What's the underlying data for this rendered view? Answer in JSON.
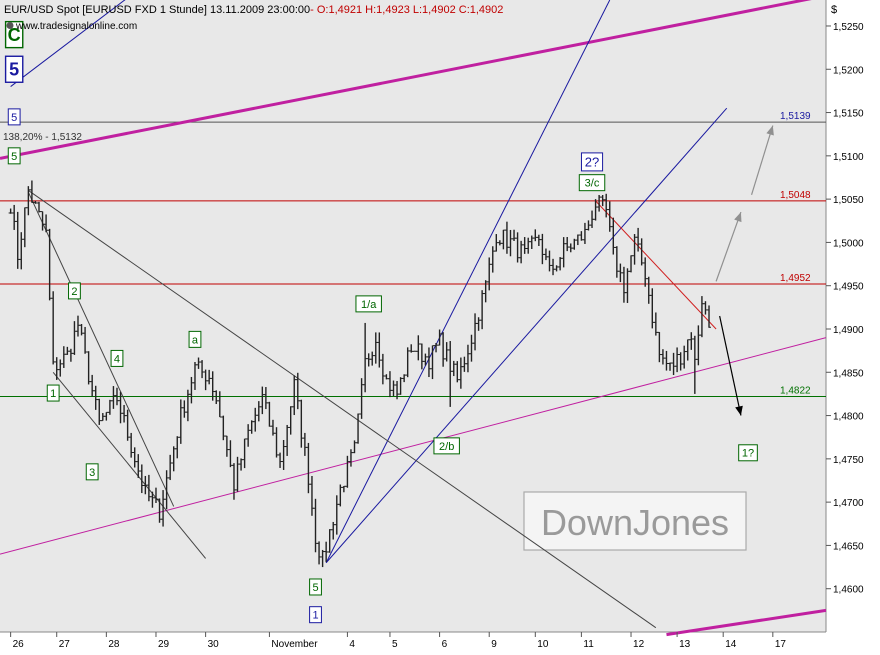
{
  "header": {
    "title": "EUR/USD Spot [EURUSD FXD  1 Stunde] 13.11.2009 23:00:00",
    "ohlc": "- O:1,4921 H:1,4923 L:1,4902 C:1,4902",
    "source": "www.tradesignalonline.com",
    "currency_symbol": "$"
  },
  "watermark": "DownJones",
  "colors": {
    "background": "#e8e8e8",
    "bars": "#222222",
    "resistance": "#c00000",
    "support": "#007000",
    "magenta": "#c020a0",
    "channel_blue": "#1a1aa0",
    "wave_green": "#006600",
    "wave_blue": "#1a1aa0",
    "arrow_gray": "#909090",
    "arrow_black": "#000000"
  },
  "chart_data": {
    "type": "ohlc",
    "instrument": "EUR/USD",
    "interval": "1 Stunde",
    "ylim": [
      1.455,
      1.528
    ],
    "y_ticks": [
      "1,5250",
      "1,5200",
      "1,5150",
      "1,5100",
      "1,5050",
      "1,5000",
      "1,4950",
      "1,4900",
      "1,4850",
      "1,4800",
      "1,4750",
      "1,4700",
      "1,4650",
      "1,4600"
    ],
    "x_labels": [
      {
        "text": "26",
        "i": 0
      },
      {
        "text": "27",
        "i": 13
      },
      {
        "text": "28",
        "i": 27
      },
      {
        "text": "29",
        "i": 41
      },
      {
        "text": "30",
        "i": 55
      },
      {
        "text": "November",
        "i": 73
      },
      {
        "text": "4",
        "i": 95
      },
      {
        "text": "5",
        "i": 107
      },
      {
        "text": "6",
        "i": 121
      },
      {
        "text": "9",
        "i": 135
      },
      {
        "text": "10",
        "i": 148
      },
      {
        "text": "11",
        "i": 161
      },
      {
        "text": "12",
        "i": 175
      },
      {
        "text": "13",
        "i": 188
      },
      {
        "text": "14",
        "i": 201
      },
      {
        "text": "17",
        "i": 215
      }
    ],
    "index_range": [
      -3,
      230
    ],
    "anchors": [
      [
        0,
        1.5045
      ],
      [
        2,
        1.4985
      ],
      [
        5,
        1.506
      ],
      [
        10,
        1.501
      ],
      [
        12,
        1.4855
      ],
      [
        16,
        1.487
      ],
      [
        19,
        1.4905
      ],
      [
        25,
        1.479
      ],
      [
        30,
        1.482
      ],
      [
        34,
        1.4765
      ],
      [
        38,
        1.471
      ],
      [
        42,
        1.469
      ],
      [
        48,
        1.48
      ],
      [
        52,
        1.4855
      ],
      [
        56,
        1.4845
      ],
      [
        58,
        1.482
      ],
      [
        63,
        1.472
      ],
      [
        67,
        1.478
      ],
      [
        71,
        1.482
      ],
      [
        76,
        1.4745
      ],
      [
        80,
        1.4835
      ],
      [
        84,
        1.473
      ],
      [
        86,
        1.466
      ],
      [
        88,
        1.4632
      ],
      [
        93,
        1.4715
      ],
      [
        97,
        1.476
      ],
      [
        100,
        1.486
      ],
      [
        103,
        1.489
      ],
      [
        106,
        1.484
      ],
      [
        109,
        1.4825
      ],
      [
        113,
        1.488
      ],
      [
        118,
        1.4865
      ],
      [
        121,
        1.4885
      ],
      [
        126,
        1.484
      ],
      [
        130,
        1.489
      ],
      [
        134,
        1.495
      ],
      [
        137,
        1.501
      ],
      [
        141,
        1.5
      ],
      [
        145,
        1.4985
      ],
      [
        149,
        1.5005
      ],
      [
        152,
        1.4965
      ],
      [
        156,
        1.499
      ],
      [
        159,
        1.5
      ],
      [
        162,
        1.501
      ],
      [
        165,
        1.5045
      ],
      [
        168,
        1.5035
      ],
      [
        170,
        1.4985
      ],
      [
        173,
        1.495
      ],
      [
        176,
        1.5
      ],
      [
        179,
        1.4965
      ],
      [
        181,
        1.4915
      ],
      [
        183,
        1.487
      ],
      [
        186,
        1.4855
      ],
      [
        189,
        1.487
      ],
      [
        192,
        1.4895
      ],
      [
        193,
        1.486
      ],
      [
        195,
        1.4935
      ],
      [
        197,
        1.4902
      ]
    ],
    "spikes": [
      {
        "i": 88,
        "low": 1.4625
      },
      {
        "i": 100,
        "high": 1.4907
      },
      {
        "i": 124,
        "low": 1.481
      },
      {
        "i": 165,
        "high": 1.505
      },
      {
        "i": 193,
        "low": 1.4825
      },
      {
        "i": 195,
        "high": 1.4938
      },
      {
        "i": 5,
        "high": 1.5065
      }
    ],
    "horizontal_levels": [
      {
        "value": 1.5139,
        "label": "1,5139",
        "color": "#1a1aa0",
        "line": "#555555"
      },
      {
        "value": 1.5048,
        "label": "1,5048",
        "color": "#c00000",
        "line": "#c00000"
      },
      {
        "value": 1.4952,
        "label": "1,4952",
        "color": "#c00000",
        "line": "#c00000"
      },
      {
        "value": 1.4822,
        "label": "1,4822",
        "color": "#007000",
        "line": "#007000"
      }
    ],
    "fib_annotation": "138,20% - 1,5132",
    "trend_lines": [
      {
        "name": "upper-magenta-trendline",
        "color": "#c020a0",
        "width": 3,
        "p1": [
          -3,
          1.5097
        ],
        "p2": [
          230,
          1.5285
        ]
      },
      {
        "name": "lower-magenta-trendline",
        "color": "#c020a0",
        "width": 3,
        "p1": [
          185,
          1.4547
        ],
        "p2": [
          230,
          1.4575
        ]
      },
      {
        "name": "magenta-support-line",
        "color": "#c020a0",
        "width": 1,
        "p1": [
          -3,
          1.464
        ],
        "p2": [
          230,
          1.489
        ]
      },
      {
        "name": "blue-upper-channel-line",
        "color": "#1a1aa0",
        "width": 1,
        "p1": [
          89,
          1.463
        ],
        "p2": [
          169,
          1.528
        ]
      },
      {
        "name": "blue-lower-channel-line",
        "color": "#1a1aa0",
        "width": 1,
        "p1": [
          89,
          1.463
        ],
        "p2": [
          202,
          1.5155
        ]
      },
      {
        "name": "blue-topleft-line",
        "color": "#1a1aa0",
        "width": 1,
        "p1": [
          0,
          1.518
        ],
        "p2": [
          37,
          1.5295
        ]
      },
      {
        "name": "gray-downtrend-line",
        "color": "#444444",
        "width": 1,
        "p1": [
          5,
          1.506
        ],
        "p2": [
          182,
          1.4555
        ]
      },
      {
        "name": "gray-wave-channel-upper",
        "color": "#444444",
        "width": 1,
        "p1": [
          5,
          1.5058
        ],
        "p2": [
          46,
          1.4695
        ]
      },
      {
        "name": "gray-wave-channel-lower",
        "color": "#444444",
        "width": 1,
        "p1": [
          12,
          1.485
        ],
        "p2": [
          55,
          1.4635
        ]
      },
      {
        "name": "red-resistance-line",
        "color": "#d02020",
        "width": 1,
        "p1": [
          165,
          1.5048
        ],
        "p2": [
          199,
          1.49
        ]
      }
    ],
    "wave_labels": [
      {
        "text": "C",
        "style": "big-green",
        "i": 1,
        "y": 1.524
      },
      {
        "text": "5",
        "style": "big-blue",
        "i": 1,
        "y": 1.52
      },
      {
        "text": "5",
        "style": "blue",
        "i": 1,
        "y": 1.5145
      },
      {
        "text": "5",
        "style": "green",
        "i": 1,
        "y": 1.51
      },
      {
        "text": "2",
        "style": "green",
        "i": 18,
        "y": 1.4944
      },
      {
        "text": "1",
        "style": "green",
        "i": 12,
        "y": 1.4826
      },
      {
        "text": "4",
        "style": "green",
        "i": 30,
        "y": 1.4866
      },
      {
        "text": "3",
        "style": "green",
        "i": 23,
        "y": 1.4735
      },
      {
        "text": "a",
        "style": "green",
        "i": 52,
        "y": 1.4888
      },
      {
        "text": "1/a",
        "style": "green",
        "i": 101,
        "y": 1.4929
      },
      {
        "text": "2/b",
        "style": "green",
        "i": 123,
        "y": 1.4765
      },
      {
        "text": "3/c",
        "style": "green",
        "i": 164,
        "y": 1.5069
      },
      {
        "text": "2?",
        "style": "blue",
        "i": 164,
        "y": 1.5093
      },
      {
        "text": "5",
        "style": "green",
        "i": 86,
        "y": 1.4602
      },
      {
        "text": "1",
        "style": "blue",
        "i": 86,
        "y": 1.457
      },
      {
        "text": "1?",
        "style": "green",
        "i": 208,
        "y": 1.4757
      }
    ],
    "projection_arrows": [
      {
        "color": "#909090",
        "p1": [
          199,
          1.4955
        ],
        "p2": [
          206,
          1.5035
        ]
      },
      {
        "color": "#909090",
        "p1": [
          209,
          1.5055
        ],
        "p2": [
          215,
          1.5135
        ]
      },
      {
        "color": "#000000",
        "p1": [
          200,
          1.4915
        ],
        "p2": [
          206,
          1.48
        ]
      }
    ]
  }
}
